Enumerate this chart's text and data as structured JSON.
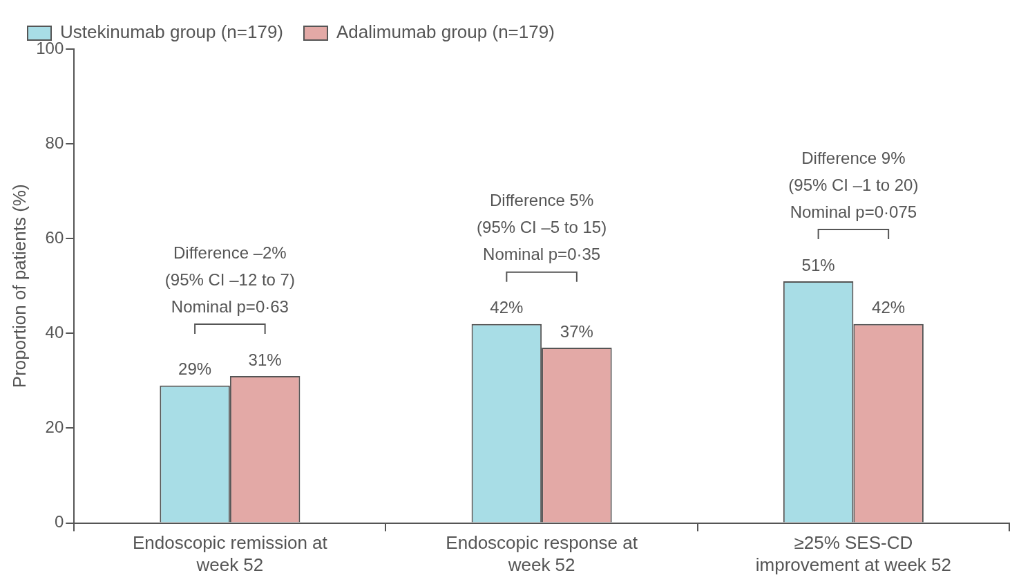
{
  "chart_data": {
    "type": "bar",
    "categories": [
      "Endoscopic remission at week 52",
      "Endoscopic response at week 52",
      "≥25% SES-CD improvement at week 52"
    ],
    "series": [
      {
        "name": "Ustekinumab group (n=179)",
        "color": "#a8dde6",
        "values": [
          29,
          42,
          51
        ],
        "value_labels": [
          "29%",
          "42%",
          "51%"
        ]
      },
      {
        "name": "Adalimumab group (n=179)",
        "color": "#e3a9a6",
        "values": [
          31,
          37,
          42
        ],
        "value_labels": [
          "31%",
          "37%",
          "42%"
        ]
      }
    ],
    "ylabel": "Proportion of patients (%)",
    "ylim": [
      0,
      100
    ],
    "yticks": [
      0,
      20,
      40,
      60,
      80,
      100
    ],
    "grid": false,
    "legend": "top left",
    "annotations": [
      "Difference –2%\n(95% CI –12 to 7)\nNominal p=0·63",
      "Difference 5%\n(95% CI –5 to 15)\nNominal p=0·35",
      "Difference 9%\n(95% CI –1 to 20)\nNominal p=0·075"
    ]
  }
}
